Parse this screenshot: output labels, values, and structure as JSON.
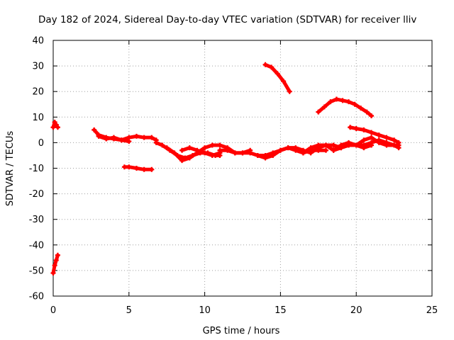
{
  "chart_data": {
    "type": "scatter",
    "title": "Day 182 of 2024, Sidereal Day-to-day VTEC variation (SDTVAR) for receiver lliv",
    "xlabel": "GPS time / hours",
    "ylabel": "SDTVAR / TECUs",
    "xlim": [
      0,
      25
    ],
    "ylim": [
      -60,
      40
    ],
    "xticks": [
      "0",
      "5",
      "10",
      "15",
      "20",
      "25"
    ],
    "yticks": [
      "40",
      "30",
      "20",
      "10",
      "0",
      "-10",
      "-20",
      "-30",
      "-40",
      "-50",
      "-60"
    ],
    "grid": true,
    "marker_color": "#ff0000",
    "series": [
      {
        "x": [
          0.0,
          0.1,
          0.2,
          0.3
        ],
        "y": [
          6,
          8,
          7,
          6
        ]
      },
      {
        "x": [
          0.0,
          0.1,
          0.2,
          0.3
        ],
        "y": [
          -51,
          -48,
          -46,
          -44
        ]
      },
      {
        "x": [
          2.7,
          3.0,
          3.5,
          4.0,
          4.5,
          5.0
        ],
        "y": [
          5,
          3,
          2,
          1.5,
          1,
          0.5
        ]
      },
      {
        "x": [
          3.0,
          3.5,
          4.0,
          4.5,
          5.0,
          5.5,
          6.0,
          6.5,
          6.8
        ],
        "y": [
          2.5,
          1.5,
          2,
          1,
          2,
          2.5,
          2,
          2,
          1
        ]
      },
      {
        "x": [
          4.7,
          5.0,
          5.5,
          6.0,
          6.5
        ],
        "y": [
          -9.5,
          -9.5,
          -10,
          -10.5,
          -10.5
        ]
      },
      {
        "x": [
          6.8,
          7.2,
          7.7,
          8.2,
          8.7,
          9.2,
          9.7,
          10.2,
          10.7,
          11.0
        ],
        "y": [
          0,
          -1,
          -3,
          -5,
          -6,
          -5,
          -4,
          -4,
          -5,
          -5
        ]
      },
      {
        "x": [
          7.5,
          8.0,
          8.5,
          9.0,
          9.5,
          10.0,
          10.5,
          11.0,
          11.5,
          12.0,
          12.5,
          13.0
        ],
        "y": [
          -2,
          -4,
          -7,
          -6,
          -4,
          -2,
          -1,
          -1,
          -2,
          -4,
          -4,
          -3
        ]
      },
      {
        "x": [
          8.5,
          9.0,
          9.5,
          10.0,
          10.5,
          11.0
        ],
        "y": [
          -3,
          -2,
          -3,
          -4,
          -5,
          -4
        ]
      },
      {
        "x": [
          11.0,
          11.5,
          12.0,
          12.5,
          13.0,
          13.5,
          14.0,
          14.5,
          15.0,
          15.5,
          16.0,
          16.5,
          17.0,
          17.5,
          18.0
        ],
        "y": [
          -3,
          -3,
          -4,
          -4,
          -4,
          -5,
          -6,
          -5,
          -3,
          -2,
          -3,
          -4,
          -3,
          -3,
          -3
        ]
      },
      {
        "x": [
          13.5,
          14.0,
          14.5,
          15.0,
          15.5,
          16.0,
          16.5,
          17.0,
          17.5,
          18.0,
          18.5,
          19.0,
          19.5,
          20.0,
          20.5,
          21.0
        ],
        "y": [
          -5,
          -5,
          -4,
          -3,
          -2,
          -2,
          -3,
          -4,
          -2,
          -1,
          -1,
          -2,
          -1,
          -1,
          -2,
          -1
        ]
      },
      {
        "x": [
          16.5,
          17.0,
          17.5,
          18.0,
          18.5,
          19.0,
          19.5,
          20.0,
          20.5,
          21.0,
          21.5,
          22.0,
          22.5,
          22.8
        ],
        "y": [
          -4,
          -2,
          -1,
          -1,
          -3,
          -1,
          0,
          -1,
          -1,
          0,
          1,
          0,
          -1,
          -2
        ]
      },
      {
        "x": [
          18.5,
          19.0,
          19.5,
          20.0,
          20.5,
          21.0,
          21.5,
          22.0,
          22.5,
          22.8
        ],
        "y": [
          -3,
          -2,
          -1,
          -1,
          1,
          2,
          0,
          -1,
          -1,
          -1
        ]
      },
      {
        "x": [
          19.6,
          20.0,
          20.5,
          21.0,
          21.5,
          22.0,
          22.5,
          22.8
        ],
        "y": [
          6,
          5.5,
          5,
          4,
          3,
          2,
          1,
          0
        ]
      },
      {
        "x": [
          14.0,
          14.4,
          14.8,
          15.2,
          15.6
        ],
        "y": [
          30.5,
          29.5,
          27,
          24,
          20
        ]
      },
      {
        "x": [
          17.5,
          17.9,
          18.3,
          18.7,
          19.1,
          19.5,
          19.9,
          20.3,
          20.7,
          21.0
        ],
        "y": [
          12,
          14,
          16,
          17,
          16.5,
          16,
          15,
          13.5,
          12,
          10.5
        ]
      }
    ]
  }
}
